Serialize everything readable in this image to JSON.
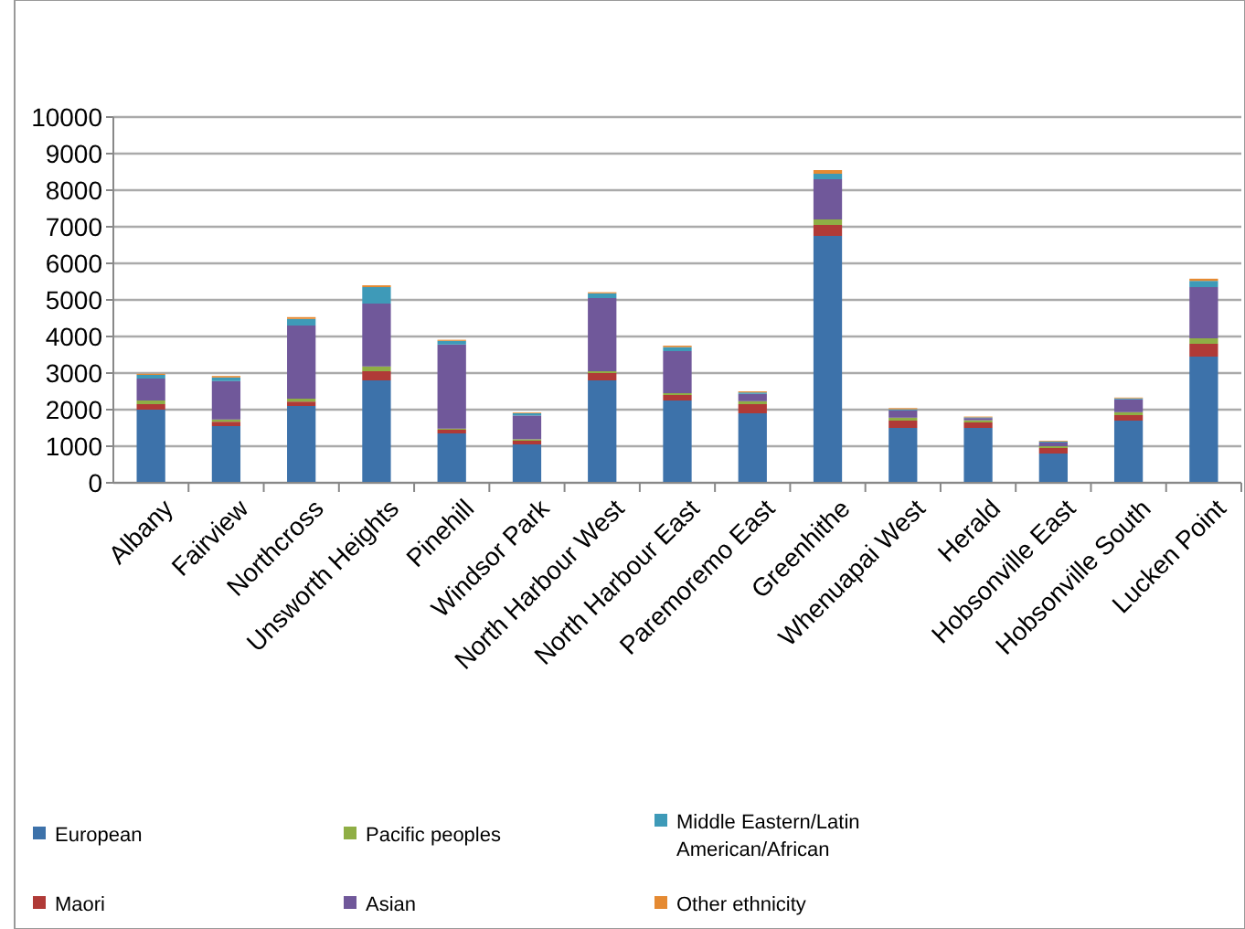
{
  "chart_data": {
    "type": "bar",
    "stacked": true,
    "categories": [
      "Albany",
      "Fairview",
      "Northcross",
      "Unsworth Heights",
      "Pinehill",
      "Windsor Park",
      "North Harbour West",
      "North Harbour East",
      "Paremoremo East",
      "Greenhithe",
      "Whenuapai West",
      "Herald",
      "Hobsonville East",
      "Hobsonville South",
      "Lucken Point"
    ],
    "series": [
      {
        "name": "European",
        "color": "#3d72aa",
        "values": [
          2000,
          1550,
          2100,
          2800,
          1350,
          1050,
          2800,
          2250,
          1900,
          6750,
          1500,
          1500,
          800,
          1700,
          3450
        ]
      },
      {
        "name": "Maori",
        "color": "#b03a37",
        "values": [
          150,
          120,
          120,
          250,
          100,
          100,
          200,
          150,
          250,
          300,
          200,
          150,
          150,
          150,
          350
        ]
      },
      {
        "name": "Pacific peoples",
        "color": "#8fae45",
        "values": [
          100,
          60,
          80,
          130,
          30,
          40,
          50,
          50,
          80,
          150,
          80,
          60,
          50,
          80,
          150
        ]
      },
      {
        "name": "Asian",
        "color": "#70589a",
        "values": [
          600,
          1050,
          2000,
          1720,
          2300,
          650,
          2000,
          1150,
          200,
          1100,
          200,
          60,
          100,
          350,
          1400
        ]
      },
      {
        "name": "Middle Eastern/Latin American/African",
        "color": "#3e9ab8",
        "values": [
          100,
          100,
          180,
          450,
          100,
          60,
          130,
          110,
          40,
          150,
          30,
          20,
          30,
          30,
          170
        ]
      },
      {
        "name": "Other ethnicity",
        "color": "#e58a32",
        "values": [
          30,
          40,
          50,
          50,
          30,
          20,
          30,
          40,
          30,
          100,
          30,
          20,
          20,
          20,
          60
        ]
      }
    ],
    "ylim": [
      0,
      10000
    ],
    "yticks": [
      0,
      1000,
      2000,
      3000,
      4000,
      5000,
      6000,
      7000,
      8000,
      9000,
      10000
    ],
    "grid": "y",
    "legend": "bottom"
  }
}
